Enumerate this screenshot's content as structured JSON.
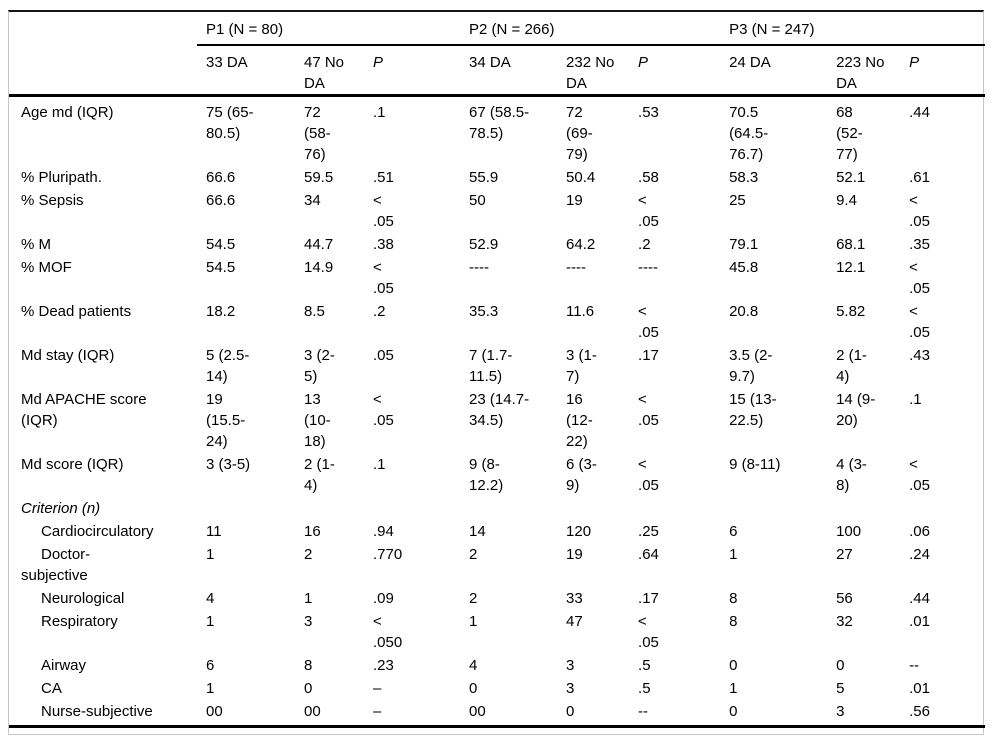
{
  "table": {
    "col_group_headers": [
      {
        "text": "P1 (N = 80)"
      },
      {
        "text": "P2 (N = 266)"
      },
      {
        "text": "P3 (N = 247)"
      }
    ],
    "sub_headers": [
      {
        "text": "33 DA",
        "italic": false
      },
      {
        "text": "47 No\nDA",
        "italic": false
      },
      {
        "text": "P",
        "italic": true
      },
      {
        "text": "34 DA",
        "italic": false
      },
      {
        "text": "232 No\nDA",
        "italic": false
      },
      {
        "text": "P",
        "italic": true
      },
      {
        "text": "24 DA",
        "italic": false
      },
      {
        "text": "223 No\nDA",
        "italic": false
      },
      {
        "text": "P",
        "italic": true
      }
    ],
    "rows": [
      {
        "label": "Age md (IQR)",
        "style": "normal",
        "cells": [
          "75 (65-\n80.5)",
          "72\n(58-\n76)",
          ".1",
          "67 (58.5-\n78.5)",
          "72\n(69-\n79)",
          ".53",
          "70.5\n(64.5-\n76.7)",
          "68\n(52-\n77)",
          ".44"
        ]
      },
      {
        "label": "% Pluripath.",
        "style": "normal",
        "cells": [
          "66.6",
          "59.5",
          ".51",
          "55.9",
          "50.4",
          ".58",
          "58.3",
          "52.1",
          ".61"
        ]
      },
      {
        "label": "% Sepsis",
        "style": "normal",
        "cells": [
          "66.6",
          "34",
          "<\n.05",
          "50",
          "19",
          "<\n.05",
          "25",
          "9.4",
          "<\n.05"
        ]
      },
      {
        "label": "% M",
        "style": "normal",
        "cells": [
          "54.5",
          "44.7",
          ".38",
          "52.9",
          "64.2",
          ".2",
          "79.1",
          "68.1",
          ".35"
        ]
      },
      {
        "label": "% MOF",
        "style": "normal",
        "cells": [
          "54.5",
          "14.9",
          "<\n.05",
          "----",
          "----",
          "----",
          "45.8",
          "12.1",
          "<\n.05"
        ]
      },
      {
        "label": "% Dead patients",
        "style": "normal",
        "cells": [
          "18.2",
          "8.5",
          ".2",
          "35.3",
          "11.6",
          "<\n.05",
          "20.8",
          "5.82",
          "<\n.05"
        ]
      },
      {
        "label": "Md stay (IQR)",
        "style": "normal",
        "cells": [
          "5 (2.5-\n14)",
          "3 (2-\n5)",
          ".05",
          "7 (1.7-\n11.5)",
          "3 (1-\n7)",
          ".17",
          "3.5 (2-\n9.7)",
          "2 (1-\n4)",
          ".43"
        ]
      },
      {
        "label": "Md APACHE score\n(IQR)",
        "style": "normal",
        "cells": [
          "19\n(15.5-\n24)",
          "13\n(10-\n18)",
          "<\n.05",
          "23 (14.7-\n34.5)",
          "16\n(12-\n22)",
          "<\n.05",
          "15 (13-\n22.5)",
          "14 (9-\n20)",
          ".1"
        ]
      },
      {
        "label": "Md score (IQR)",
        "style": "normal",
        "cells": [
          "3 (3-5)",
          "2 (1-\n4)",
          ".1",
          "9 (8-\n12.2)",
          "6 (3-\n9)",
          "<\n.05",
          "9 (8-11)",
          "4 (3-\n8)",
          "<\n.05"
        ]
      },
      {
        "label": "Criterion (n)",
        "style": "section",
        "cells": [
          "",
          "",
          "",
          "",
          "",
          "",
          "",
          "",
          ""
        ]
      },
      {
        "label": "Cardiocirculatory",
        "style": "indent",
        "cells": [
          "11",
          "16",
          ".94",
          "14",
          "120",
          ".25",
          "6",
          "100",
          ".06"
        ]
      },
      {
        "label": "Doctor-\nsubjective",
        "style": "indent",
        "cells": [
          "1",
          "2",
          ".770",
          "2",
          "19",
          ".64",
          "1",
          "27",
          ".24"
        ]
      },
      {
        "label": "Neurological",
        "style": "indent",
        "cells": [
          "4",
          "1",
          ".09",
          "2",
          "33",
          ".17",
          "8",
          "56",
          ".44"
        ]
      },
      {
        "label": "Respiratory",
        "style": "indent",
        "cells": [
          "1",
          "3",
          "<\n.050",
          "1",
          "47",
          "<\n.05",
          "8",
          "32",
          ".01"
        ]
      },
      {
        "label": "Airway",
        "style": "indent",
        "cells": [
          "6",
          "8",
          ".23",
          "4",
          "3",
          ".5",
          "0",
          "0",
          "--"
        ]
      },
      {
        "label": "CA",
        "style": "indent",
        "cells": [
          "1",
          "0",
          "–",
          "0",
          "3",
          ".5",
          "1",
          "5",
          ".01"
        ]
      },
      {
        "label": "Nurse-subjective",
        "style": "indent",
        "cells": [
          "00",
          "00",
          "–",
          "00",
          "0",
          "--",
          "0",
          "3",
          ".56"
        ]
      }
    ]
  }
}
